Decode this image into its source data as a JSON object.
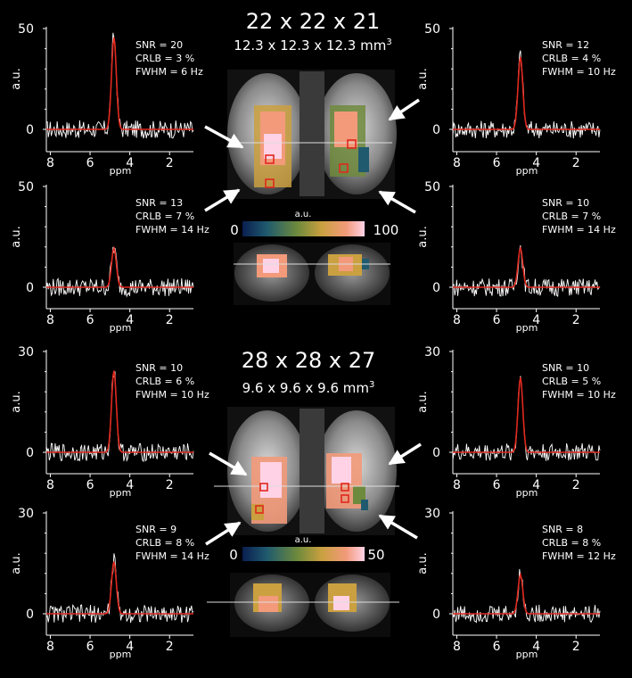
{
  "sections": [
    {
      "title": "22 x 22 x 21",
      "voxel_size": "12.3 x 12.3 x 12.3 mm",
      "voxel_size_sup": "3",
      "colorbar": {
        "label": "a.u.",
        "min": "0",
        "max": "100"
      }
    },
    {
      "title": "28 x 28 x 27",
      "voxel_size": "9.6 x 9.6 x 9.6 mm",
      "voxel_size_sup": "3",
      "colorbar": {
        "label": "a.u.",
        "min": "0",
        "max": "50"
      }
    }
  ],
  "colors": {
    "background": "#000000",
    "measured_spectrum": "#ffffff",
    "fit": "#e0281e",
    "voxel_marker": "#e0281e",
    "colormap": [
      "#0a1e50",
      "#1f5a6e",
      "#6e8a3c",
      "#caa040",
      "#f29a7a",
      "#ffd2e6"
    ]
  },
  "chart_data": [
    {
      "type": "line",
      "panel": "top-left-1",
      "xlabel": "ppm",
      "ylabel": "a.u.",
      "xlim": [
        8.2,
        0.8
      ],
      "ylim": [
        0,
        50
      ],
      "x_ticks": [
        "8",
        "6",
        "4",
        "2"
      ],
      "y_ticks": [
        "0",
        "50"
      ],
      "peak_ppm": 4.8,
      "peak_height": 47,
      "stats": [
        "SNR = 20",
        "CRLB = 3 %",
        "FWHM = 6 Hz"
      ]
    },
    {
      "type": "line",
      "panel": "top-right-1",
      "xlabel": "ppm",
      "ylabel": "a.u.",
      "xlim": [
        8.2,
        0.8
      ],
      "ylim": [
        0,
        50
      ],
      "x_ticks": [
        "8",
        "6",
        "4",
        "2"
      ],
      "y_ticks": [
        "0",
        "50"
      ],
      "peak_ppm": 4.8,
      "peak_height": 37,
      "stats": [
        "SNR = 12",
        "CRLB = 4 %",
        "FWHM = 10 Hz"
      ]
    },
    {
      "type": "line",
      "panel": "top-left-2",
      "xlabel": "ppm",
      "ylabel": "a.u.",
      "xlim": [
        8.2,
        0.8
      ],
      "ylim": [
        0,
        50
      ],
      "x_ticks": [
        "8",
        "6",
        "4",
        "2"
      ],
      "y_ticks": [
        "0",
        "50"
      ],
      "peak_ppm": 4.8,
      "peak_height": 20,
      "stats": [
        "SNR = 13",
        "CRLB = 7 %",
        "FWHM = 14 Hz"
      ]
    },
    {
      "type": "line",
      "panel": "top-right-2",
      "xlabel": "ppm",
      "ylabel": "a.u.",
      "xlim": [
        8.2,
        0.8
      ],
      "ylim": [
        0,
        50
      ],
      "x_ticks": [
        "8",
        "6",
        "4",
        "2"
      ],
      "y_ticks": [
        "0",
        "50"
      ],
      "peak_ppm": 4.8,
      "peak_height": 20,
      "stats": [
        "SNR = 10",
        "CRLB = 7 %",
        "FWHM = 14 Hz"
      ]
    },
    {
      "type": "line",
      "panel": "bottom-left-1",
      "xlabel": "ppm",
      "ylabel": "a.u.",
      "xlim": [
        8.2,
        0.8
      ],
      "ylim": [
        0,
        30
      ],
      "x_ticks": [
        "8",
        "6",
        "4",
        "2"
      ],
      "y_ticks": [
        "0",
        "30"
      ],
      "peak_ppm": 4.8,
      "peak_height": 25,
      "stats": [
        "SNR = 10",
        "CRLB = 6 %",
        "FWHM = 10 Hz"
      ]
    },
    {
      "type": "line",
      "panel": "bottom-right-1",
      "xlabel": "ppm",
      "ylabel": "a.u.",
      "xlim": [
        8.2,
        0.8
      ],
      "ylim": [
        0,
        30
      ],
      "x_ticks": [
        "8",
        "6",
        "4",
        "2"
      ],
      "y_ticks": [
        "0",
        "30"
      ],
      "peak_ppm": 4.8,
      "peak_height": 23,
      "stats": [
        "SNR = 10",
        "CRLB = 5 %",
        "FWHM = 10 Hz"
      ]
    },
    {
      "type": "line",
      "panel": "bottom-left-2",
      "xlabel": "ppm",
      "ylabel": "a.u.",
      "xlim": [
        8.2,
        0.8
      ],
      "ylim": [
        0,
        30
      ],
      "x_ticks": [
        "8",
        "6",
        "4",
        "2"
      ],
      "y_ticks": [
        "0",
        "30"
      ],
      "peak_ppm": 4.8,
      "peak_height": 16,
      "stats": [
        "SNR = 9",
        "CRLB = 8 %",
        "FWHM = 14 Hz"
      ]
    },
    {
      "type": "line",
      "panel": "bottom-right-2",
      "xlabel": "ppm",
      "ylabel": "a.u.",
      "xlim": [
        8.2,
        0.8
      ],
      "ylim": [
        0,
        30
      ],
      "x_ticks": [
        "8",
        "6",
        "4",
        "2"
      ],
      "y_ticks": [
        "0",
        "30"
      ],
      "peak_ppm": 4.8,
      "peak_height": 12,
      "stats": [
        "SNR = 8",
        "CRLB = 8 %",
        "FWHM = 12 Hz"
      ]
    }
  ]
}
